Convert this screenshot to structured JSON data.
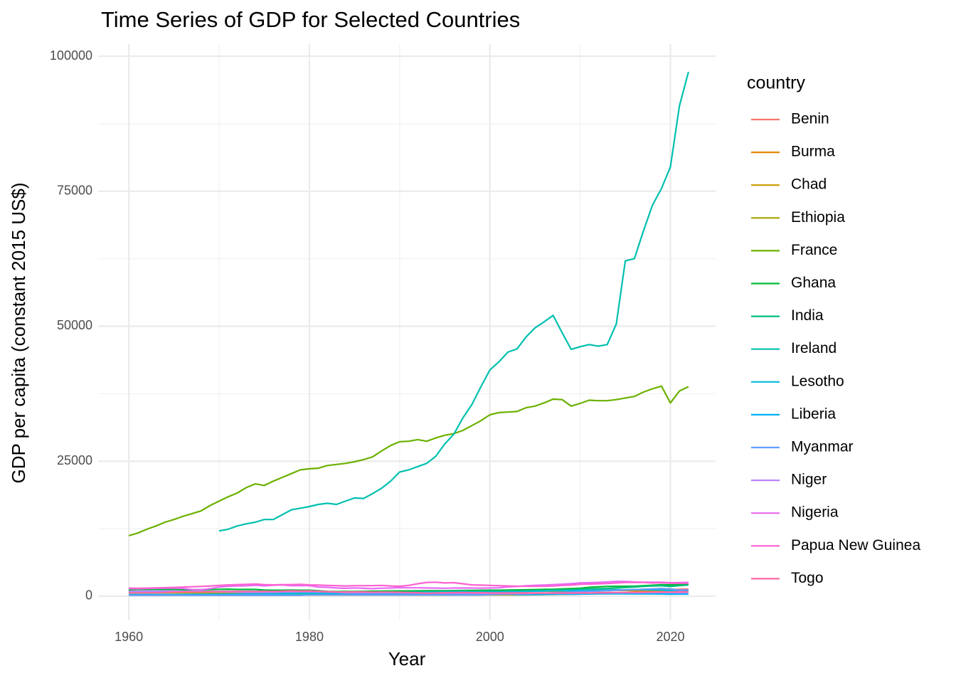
{
  "chart_data": {
    "type": "line",
    "title": "Time Series of GDP for Selected Countries",
    "x_label": "Year",
    "y_label": "GDP per capita (constant 2015 US$)",
    "legend_title": "country",
    "legend_position": "right",
    "grid": true,
    "xlim": [
      1956.6,
      2025
    ],
    "ylim": [
      -4480,
      102240
    ],
    "xticks": [
      1960,
      1980,
      2000,
      2020
    ],
    "yticks": [
      0,
      25000,
      50000,
      75000,
      100000
    ],
    "x": [
      1960,
      1961,
      1962,
      1963,
      1964,
      1965,
      1966,
      1967,
      1968,
      1969,
      1970,
      1971,
      1972,
      1973,
      1974,
      1975,
      1976,
      1977,
      1978,
      1979,
      1980,
      1981,
      1982,
      1983,
      1984,
      1985,
      1986,
      1987,
      1988,
      1989,
      1990,
      1991,
      1992,
      1993,
      1994,
      1995,
      1996,
      1997,
      1998,
      1999,
      2000,
      2001,
      2002,
      2003,
      2004,
      2005,
      2006,
      2007,
      2008,
      2009,
      2010,
      2011,
      2012,
      2013,
      2014,
      2015,
      2016,
      2017,
      2018,
      2019,
      2020,
      2021,
      2022
    ],
    "series": [
      {
        "name": "Benin",
        "color": "#F8766D",
        "values": [
          750,
          750,
          750,
          750,
          750,
          750,
          750,
          750,
          750,
          750,
          750,
          750,
          750,
          750,
          750,
          750,
          750,
          750,
          750,
          750,
          800,
          800,
          800,
          800,
          800,
          800,
          800,
          800,
          800,
          800,
          800,
          800,
          800,
          800,
          800,
          800,
          800,
          800,
          800,
          800,
          850,
          870,
          880,
          890,
          900,
          910,
          920,
          940,
          960,
          960,
          970,
          990,
          1010,
          1040,
          1080,
          1100,
          1110,
          1140,
          1180,
          1220,
          1230,
          1290,
          1320
        ]
      },
      {
        "name": "Burma",
        "color": "#E58700",
        "values": [
          200,
          200,
          200,
          200,
          200,
          200,
          200,
          200,
          200,
          200,
          200,
          200,
          200,
          200,
          200,
          200,
          200,
          200,
          200,
          200,
          250,
          250,
          250,
          250,
          250,
          250,
          250,
          250,
          250,
          250,
          250,
          250,
          250,
          250,
          250,
          250,
          250,
          250,
          250,
          250,
          300,
          330,
          360,
          400,
          440,
          490,
          550,
          620,
          690,
          760,
          830,
          890,
          950,
          1010,
          1080,
          1150,
          1200,
          1270,
          1330,
          1390,
          1340,
          1110,
          1150
        ]
      },
      {
        "name": "Chad",
        "color": "#C99800",
        "values": [
          650,
          650,
          650,
          650,
          650,
          650,
          650,
          650,
          650,
          650,
          650,
          650,
          650,
          650,
          650,
          650,
          650,
          650,
          650,
          650,
          650,
          650,
          650,
          650,
          650,
          650,
          650,
          650,
          650,
          650,
          650,
          650,
          650,
          650,
          650,
          650,
          650,
          650,
          650,
          650,
          620,
          640,
          680,
          690,
          880,
          1000,
          980,
          950,
          930,
          930,
          1030,
          1000,
          1060,
          1100,
          1130,
          1070,
          1000,
          960,
          960,
          960,
          930,
          910,
          900
        ]
      },
      {
        "name": "Ethiopia",
        "color": "#A3A500",
        "values": [
          250,
          250,
          250,
          250,
          250,
          250,
          250,
          250,
          250,
          250,
          250,
          250,
          250,
          250,
          250,
          250,
          250,
          250,
          250,
          250,
          250,
          250,
          250,
          250,
          250,
          250,
          250,
          250,
          250,
          250,
          250,
          250,
          250,
          250,
          250,
          250,
          250,
          250,
          250,
          250,
          240,
          250,
          250,
          240,
          260,
          280,
          300,
          330,
          350,
          370,
          400,
          430,
          450,
          480,
          520,
          560,
          600,
          630,
          660,
          700,
          730,
          760,
          790
        ]
      },
      {
        "name": "France",
        "color": "#6BB100",
        "values": [
          11200,
          11700,
          12400,
          13000,
          13700,
          14200,
          14800,
          15300,
          15800,
          16800,
          17600,
          18400,
          19100,
          20100,
          20800,
          20500,
          21300,
          22000,
          22700,
          23400,
          23600,
          23700,
          24200,
          24400,
          24600,
          24900,
          25300,
          25800,
          26900,
          27900,
          28600,
          28700,
          29000,
          28700,
          29300,
          29800,
          30100,
          30700,
          31600,
          32500,
          33600,
          34000,
          34100,
          34200,
          34900,
          35200,
          35800,
          36500,
          36400,
          35200,
          35700,
          36300,
          36200,
          36200,
          36400,
          36700,
          37000,
          37800,
          38400,
          38900,
          35800,
          38000,
          38800
        ]
      },
      {
        "name": "Ghana",
        "color": "#00BA38",
        "values": [
          1200,
          1250,
          1250,
          1280,
          1270,
          1250,
          1200,
          1200,
          1200,
          1230,
          1280,
          1300,
          1250,
          1250,
          1250,
          1150,
          1100,
          1100,
          1150,
          1100,
          1100,
          1000,
          900,
          850,
          870,
          880,
          900,
          920,
          940,
          960,
          970,
          980,
          990,
          1000,
          1000,
          1020,
          1030,
          1050,
          1070,
          1090,
          1100,
          1110,
          1130,
          1160,
          1190,
          1220,
          1260,
          1290,
          1360,
          1390,
          1460,
          1640,
          1730,
          1820,
          1830,
          1840,
          1850,
          1950,
          2030,
          2120,
          2100,
          2170,
          2200
        ]
      },
      {
        "name": "India",
        "color": "#00BF7D",
        "values": [
          300,
          305,
          310,
          315,
          320,
          320,
          315,
          330,
          340,
          350,
          360,
          360,
          350,
          360,
          360,
          380,
          380,
          400,
          410,
          390,
          400,
          420,
          430,
          450,
          460,
          470,
          490,
          510,
          550,
          570,
          580,
          570,
          590,
          610,
          640,
          680,
          710,
          720,
          750,
          790,
          800,
          820,
          840,
          890,
          940,
          1000,
          1060,
          1110,
          1120,
          1190,
          1290,
          1330,
          1380,
          1440,
          1520,
          1610,
          1710,
          1800,
          1890,
          1940,
          1810,
          1960,
          2080
        ]
      },
      {
        "name": "Ireland",
        "color": "#00C0AF",
        "values": [
          null,
          null,
          null,
          null,
          null,
          null,
          null,
          null,
          null,
          null,
          12100,
          12400,
          13000,
          13400,
          13700,
          14200,
          14200,
          15100,
          16000,
          16300,
          16600,
          17000,
          17200,
          17000,
          17600,
          18200,
          18100,
          19000,
          20000,
          21300,
          23000,
          23400,
          24000,
          24600,
          25900,
          28200,
          30000,
          33000,
          35500,
          38800,
          41900,
          43400,
          45200,
          45800,
          48000,
          49700,
          50800,
          52000,
          48800,
          45700,
          46200,
          46600,
          46300,
          46600,
          50400,
          62100,
          62500,
          67600,
          72400,
          75500,
          79500,
          90800,
          97100
        ]
      },
      {
        "name": "Lesotho",
        "color": "#00BCD8",
        "values": [
          260,
          270,
          280,
          290,
          300,
          320,
          330,
          340,
          350,
          370,
          380,
          390,
          400,
          420,
          430,
          450,
          470,
          500,
          540,
          560,
          570,
          580,
          560,
          540,
          570,
          580,
          590,
          600,
          640,
          680,
          700,
          720,
          740,
          760,
          780,
          800,
          830,
          860,
          820,
          820,
          830,
          840,
          860,
          880,
          900,
          930,
          960,
          1000,
          1040,
          1030,
          1070,
          1100,
          1110,
          1150,
          1170,
          1170,
          1210,
          1180,
          1160,
          1140,
          1010,
          1030,
          1020
        ]
      },
      {
        "name": "Liberia",
        "color": "#00B0F6",
        "values": [
          900,
          900,
          900,
          900,
          900,
          900,
          900,
          900,
          900,
          900,
          900,
          900,
          900,
          900,
          900,
          900,
          900,
          900,
          900,
          900,
          800,
          750,
          700,
          650,
          600,
          550,
          550,
          500,
          500,
          450,
          400,
          400,
          400,
          400,
          400,
          400,
          400,
          400,
          400,
          400,
          450,
          470,
          440,
          310,
          310,
          320,
          340,
          360,
          370,
          370,
          390,
          410,
          430,
          460,
          450,
          440,
          420,
          420,
          420,
          410,
          380,
          390,
          400
        ]
      },
      {
        "name": "Myanmar",
        "color": "#619CFF",
        "values": [
          180,
          180,
          180,
          180,
          180,
          180,
          180,
          180,
          180,
          180,
          180,
          180,
          180,
          180,
          180,
          180,
          180,
          180,
          180,
          180,
          240,
          240,
          240,
          240,
          240,
          240,
          240,
          240,
          240,
          240,
          240,
          240,
          240,
          240,
          240,
          240,
          240,
          240,
          240,
          240,
          310,
          340,
          370,
          410,
          450,
          500,
          560,
          630,
          700,
          770,
          840,
          900,
          960,
          1020,
          1090,
          1160,
          1210,
          1280,
          1340,
          1400,
          1350,
          1120,
          1160
        ]
      },
      {
        "name": "Niger",
        "color": "#B983FF",
        "values": [
          900,
          920,
          940,
          950,
          960,
          930,
          900,
          880,
          860,
          840,
          820,
          800,
          760,
          700,
          720,
          720,
          740,
          760,
          800,
          830,
          820,
          800,
          790,
          740,
          640,
          640,
          650,
          630,
          650,
          630,
          620,
          590,
          560,
          560,
          560,
          550,
          550,
          540,
          560,
          540,
          520,
          530,
          530,
          540,
          520,
          540,
          550,
          550,
          580,
          550,
          590,
          580,
          620,
          620,
          640,
          640,
          650,
          660,
          690,
          690,
          680,
          650,
          690
        ]
      },
      {
        "name": "Nigeria",
        "color": "#E76BF3",
        "values": [
          1400,
          1400,
          1420,
          1470,
          1500,
          1520,
          1440,
          1230,
          1200,
          1400,
          1700,
          1850,
          1880,
          1920,
          2020,
          1920,
          2040,
          2080,
          1930,
          1980,
          1950,
          1700,
          1640,
          1530,
          1460,
          1530,
          1460,
          1400,
          1490,
          1510,
          1590,
          1560,
          1560,
          1530,
          1500,
          1470,
          1510,
          1510,
          1510,
          1500,
          1520,
          1550,
          1720,
          1810,
          1930,
          2010,
          2070,
          2150,
          2220,
          2330,
          2450,
          2500,
          2550,
          2640,
          2740,
          2730,
          2630,
          2580,
          2580,
          2590,
          2500,
          2530,
          2560
        ]
      },
      {
        "name": "Papua New Guinea",
        "color": "#FD61D1",
        "values": [
          1500,
          1480,
          1500,
          1530,
          1580,
          1620,
          1680,
          1750,
          1800,
          1900,
          2000,
          2100,
          2150,
          2200,
          2250,
          2150,
          2100,
          2150,
          2150,
          2200,
          2100,
          2050,
          2000,
          1950,
          1900,
          1950,
          1950,
          1950,
          2000,
          1900,
          1850,
          2000,
          2300,
          2550,
          2600,
          2450,
          2500,
          2300,
          2100,
          2050,
          2000,
          1950,
          1900,
          1850,
          1850,
          1850,
          1850,
          1900,
          2000,
          2050,
          2200,
          2250,
          2300,
          2350,
          2450,
          2550,
          2550,
          2550,
          2450,
          2500,
          2400,
          2400,
          2400
        ]
      },
      {
        "name": "Togo",
        "color": "#FF67A4",
        "values": [
          600,
          620,
          630,
          660,
          700,
          760,
          800,
          820,
          830,
          870,
          880,
          880,
          890,
          880,
          870,
          890,
          870,
          920,
          990,
          950,
          980,
          900,
          840,
          790,
          780,
          790,
          790,
          750,
          760,
          750,
          720,
          690,
          650,
          540,
          600,
          650,
          660,
          690,
          650,
          640,
          620,
          600,
          600,
          610,
          610,
          590,
          590,
          580,
          580,
          590,
          600,
          620,
          640,
          660,
          680,
          700,
          720,
          740,
          760,
          780,
          780,
          800,
          820
        ]
      }
    ]
  }
}
